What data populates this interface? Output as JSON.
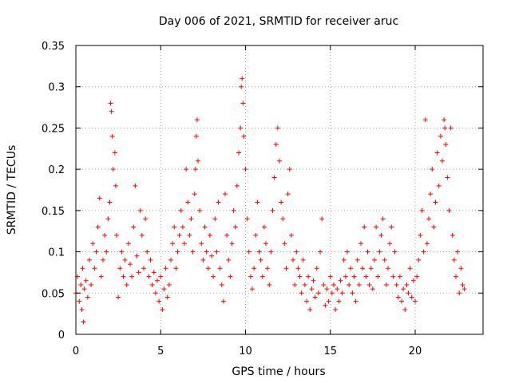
{
  "chart_data": {
    "type": "scatter",
    "title": "Day 006 of 2021, SRMTID for receiver aruc",
    "xlabel": "GPS time / hours",
    "ylabel": "SRMTID / TECUs",
    "xlim": [
      0,
      24
    ],
    "ylim": [
      0,
      0.35
    ],
    "x_ticks": [
      0,
      5,
      10,
      15,
      20
    ],
    "x_tick_labels": [
      "0",
      "5",
      "10",
      "15",
      "20"
    ],
    "y_ticks": [
      0,
      0.05,
      0.1,
      0.15,
      0.2,
      0.25,
      0.3,
      0.35
    ],
    "y_tick_labels": [
      "0",
      "0.05",
      "0.1",
      "0.15",
      "0.2",
      "0.25",
      "0.3",
      "0.35"
    ],
    "grid": true,
    "marker": "+",
    "color": "#ff0000",
    "series": [
      {
        "name": "SRMTID",
        "points": [
          [
            0.0,
            0.05
          ],
          [
            0.1,
            0.07
          ],
          [
            0.2,
            0.04
          ],
          [
            0.3,
            0.06
          ],
          [
            0.35,
            0.03
          ],
          [
            0.4,
            0.08
          ],
          [
            0.45,
            0.015
          ],
          [
            0.5,
            0.055
          ],
          [
            0.6,
            0.065
          ],
          [
            0.7,
            0.045
          ],
          [
            0.8,
            0.09
          ],
          [
            0.9,
            0.06
          ],
          [
            1.0,
            0.11
          ],
          [
            1.1,
            0.08
          ],
          [
            1.2,
            0.1
          ],
          [
            1.3,
            0.13
          ],
          [
            1.4,
            0.165
          ],
          [
            1.5,
            0.07
          ],
          [
            1.6,
            0.09
          ],
          [
            1.7,
            0.12
          ],
          [
            1.8,
            0.1
          ],
          [
            1.9,
            0.14
          ],
          [
            2.0,
            0.16
          ],
          [
            2.05,
            0.28
          ],
          [
            2.1,
            0.27
          ],
          [
            2.15,
            0.24
          ],
          [
            2.2,
            0.2
          ],
          [
            2.3,
            0.22
          ],
          [
            2.35,
            0.18
          ],
          [
            2.4,
            0.12
          ],
          [
            2.5,
            0.045
          ],
          [
            2.6,
            0.08
          ],
          [
            2.7,
            0.1
          ],
          [
            2.8,
            0.07
          ],
          [
            2.9,
            0.09
          ],
          [
            3.0,
            0.06
          ],
          [
            3.1,
            0.11
          ],
          [
            3.2,
            0.085
          ],
          [
            3.3,
            0.07
          ],
          [
            3.4,
            0.13
          ],
          [
            3.5,
            0.18
          ],
          [
            3.6,
            0.095
          ],
          [
            3.7,
            0.075
          ],
          [
            3.8,
            0.15
          ],
          [
            3.9,
            0.12
          ],
          [
            4.0,
            0.08
          ],
          [
            4.1,
            0.14
          ],
          [
            4.2,
            0.1
          ],
          [
            4.3,
            0.07
          ],
          [
            4.4,
            0.09
          ],
          [
            4.5,
            0.06
          ],
          [
            4.6,
            0.075
          ],
          [
            4.7,
            0.05
          ],
          [
            4.8,
            0.065
          ],
          [
            4.9,
            0.04
          ],
          [
            5.0,
            0.07
          ],
          [
            5.1,
            0.03
          ],
          [
            5.2,
            0.055
          ],
          [
            5.3,
            0.08
          ],
          [
            5.4,
            0.045
          ],
          [
            5.5,
            0.06
          ],
          [
            5.6,
            0.09
          ],
          [
            5.7,
            0.11
          ],
          [
            5.8,
            0.13
          ],
          [
            5.9,
            0.08
          ],
          [
            6.0,
            0.1
          ],
          [
            6.1,
            0.12
          ],
          [
            6.2,
            0.15
          ],
          [
            6.3,
            0.13
          ],
          [
            6.4,
            0.11
          ],
          [
            6.5,
            0.2
          ],
          [
            6.6,
            0.16
          ],
          [
            6.7,
            0.12
          ],
          [
            6.8,
            0.14
          ],
          [
            6.9,
            0.1
          ],
          [
            7.0,
            0.17
          ],
          [
            7.05,
            0.2
          ],
          [
            7.1,
            0.24
          ],
          [
            7.15,
            0.26
          ],
          [
            7.2,
            0.21
          ],
          [
            7.3,
            0.15
          ],
          [
            7.4,
            0.11
          ],
          [
            7.5,
            0.09
          ],
          [
            7.6,
            0.13
          ],
          [
            7.7,
            0.1
          ],
          [
            7.8,
            0.08
          ],
          [
            7.9,
            0.12
          ],
          [
            8.0,
            0.095
          ],
          [
            8.1,
            0.07
          ],
          [
            8.2,
            0.14
          ],
          [
            8.3,
            0.1
          ],
          [
            8.4,
            0.16
          ],
          [
            8.5,
            0.08
          ],
          [
            8.6,
            0.06
          ],
          [
            8.7,
            0.04
          ],
          [
            8.8,
            0.17
          ],
          [
            8.9,
            0.12
          ],
          [
            9.0,
            0.09
          ],
          [
            9.1,
            0.07
          ],
          [
            9.2,
            0.11
          ],
          [
            9.3,
            0.15
          ],
          [
            9.4,
            0.13
          ],
          [
            9.5,
            0.18
          ],
          [
            9.6,
            0.22
          ],
          [
            9.7,
            0.25
          ],
          [
            9.75,
            0.3
          ],
          [
            9.8,
            0.31
          ],
          [
            9.85,
            0.28
          ],
          [
            9.9,
            0.24
          ],
          [
            10.0,
            0.2
          ],
          [
            10.1,
            0.14
          ],
          [
            10.2,
            0.1
          ],
          [
            10.3,
            0.07
          ],
          [
            10.4,
            0.055
          ],
          [
            10.5,
            0.08
          ],
          [
            10.6,
            0.12
          ],
          [
            10.7,
            0.16
          ],
          [
            10.8,
            0.1
          ],
          [
            10.9,
            0.09
          ],
          [
            11.0,
            0.07
          ],
          [
            11.1,
            0.13
          ],
          [
            11.2,
            0.11
          ],
          [
            11.3,
            0.08
          ],
          [
            11.4,
            0.06
          ],
          [
            11.5,
            0.1
          ],
          [
            11.6,
            0.15
          ],
          [
            11.7,
            0.19
          ],
          [
            11.8,
            0.23
          ],
          [
            11.9,
            0.25
          ],
          [
            12.0,
            0.21
          ],
          [
            12.1,
            0.16
          ],
          [
            12.2,
            0.14
          ],
          [
            12.3,
            0.11
          ],
          [
            12.4,
            0.08
          ],
          [
            12.5,
            0.17
          ],
          [
            12.6,
            0.2
          ],
          [
            12.7,
            0.12
          ],
          [
            12.8,
            0.09
          ],
          [
            12.9,
            0.06
          ],
          [
            13.0,
            0.1
          ],
          [
            13.1,
            0.08
          ],
          [
            13.2,
            0.07
          ],
          [
            13.3,
            0.05
          ],
          [
            13.4,
            0.09
          ],
          [
            13.5,
            0.06
          ],
          [
            13.6,
            0.04
          ],
          [
            13.7,
            0.07
          ],
          [
            13.8,
            0.03
          ],
          [
            13.9,
            0.055
          ],
          [
            14.0,
            0.065
          ],
          [
            14.1,
            0.045
          ],
          [
            14.2,
            0.08
          ],
          [
            14.3,
            0.05
          ],
          [
            14.4,
            0.1
          ],
          [
            14.5,
            0.14
          ],
          [
            14.6,
            0.06
          ],
          [
            14.7,
            0.035
          ],
          [
            14.8,
            0.055
          ],
          [
            14.9,
            0.04
          ],
          [
            15.0,
            0.07
          ],
          [
            15.1,
            0.05
          ],
          [
            15.2,
            0.06
          ],
          [
            15.3,
            0.03
          ],
          [
            15.4,
            0.055
          ],
          [
            15.5,
            0.04
          ],
          [
            15.6,
            0.065
          ],
          [
            15.7,
            0.05
          ],
          [
            15.8,
            0.09
          ],
          [
            15.9,
            0.07
          ],
          [
            16.0,
            0.1
          ],
          [
            16.1,
            0.06
          ],
          [
            16.2,
            0.08
          ],
          [
            16.3,
            0.05
          ],
          [
            16.4,
            0.07
          ],
          [
            16.5,
            0.04
          ],
          [
            16.6,
            0.09
          ],
          [
            16.7,
            0.06
          ],
          [
            16.8,
            0.11
          ],
          [
            16.9,
            0.08
          ],
          [
            17.0,
            0.13
          ],
          [
            17.1,
            0.07
          ],
          [
            17.2,
            0.1
          ],
          [
            17.3,
            0.06
          ],
          [
            17.4,
            0.08
          ],
          [
            17.5,
            0.055
          ],
          [
            17.6,
            0.09
          ],
          [
            17.7,
            0.13
          ],
          [
            17.8,
            0.07
          ],
          [
            17.9,
            0.1
          ],
          [
            18.0,
            0.12
          ],
          [
            18.1,
            0.14
          ],
          [
            18.2,
            0.09
          ],
          [
            18.3,
            0.06
          ],
          [
            18.4,
            0.08
          ],
          [
            18.5,
            0.11
          ],
          [
            18.6,
            0.13
          ],
          [
            18.7,
            0.07
          ],
          [
            18.8,
            0.1
          ],
          [
            18.9,
            0.06
          ],
          [
            19.0,
            0.045
          ],
          [
            19.1,
            0.07
          ],
          [
            19.2,
            0.04
          ],
          [
            19.3,
            0.055
          ],
          [
            19.4,
            0.03
          ],
          [
            19.5,
            0.06
          ],
          [
            19.6,
            0.05
          ],
          [
            19.7,
            0.08
          ],
          [
            19.8,
            0.045
          ],
          [
            19.9,
            0.065
          ],
          [
            20.0,
            0.04
          ],
          [
            20.1,
            0.07
          ],
          [
            20.2,
            0.09
          ],
          [
            20.3,
            0.12
          ],
          [
            20.4,
            0.15
          ],
          [
            20.5,
            0.1
          ],
          [
            20.6,
            0.26
          ],
          [
            20.7,
            0.11
          ],
          [
            20.8,
            0.14
          ],
          [
            20.9,
            0.17
          ],
          [
            21.0,
            0.2
          ],
          [
            21.1,
            0.13
          ],
          [
            21.2,
            0.16
          ],
          [
            21.3,
            0.22
          ],
          [
            21.4,
            0.18
          ],
          [
            21.5,
            0.24
          ],
          [
            21.6,
            0.21
          ],
          [
            21.7,
            0.26
          ],
          [
            21.75,
            0.25
          ],
          [
            21.8,
            0.23
          ],
          [
            21.9,
            0.19
          ],
          [
            22.0,
            0.15
          ],
          [
            22.1,
            0.25
          ],
          [
            22.2,
            0.12
          ],
          [
            22.3,
            0.09
          ],
          [
            22.4,
            0.07
          ],
          [
            22.5,
            0.1
          ],
          [
            22.6,
            0.05
          ],
          [
            22.7,
            0.08
          ],
          [
            22.8,
            0.06
          ],
          [
            22.9,
            0.055
          ]
        ]
      }
    ]
  }
}
